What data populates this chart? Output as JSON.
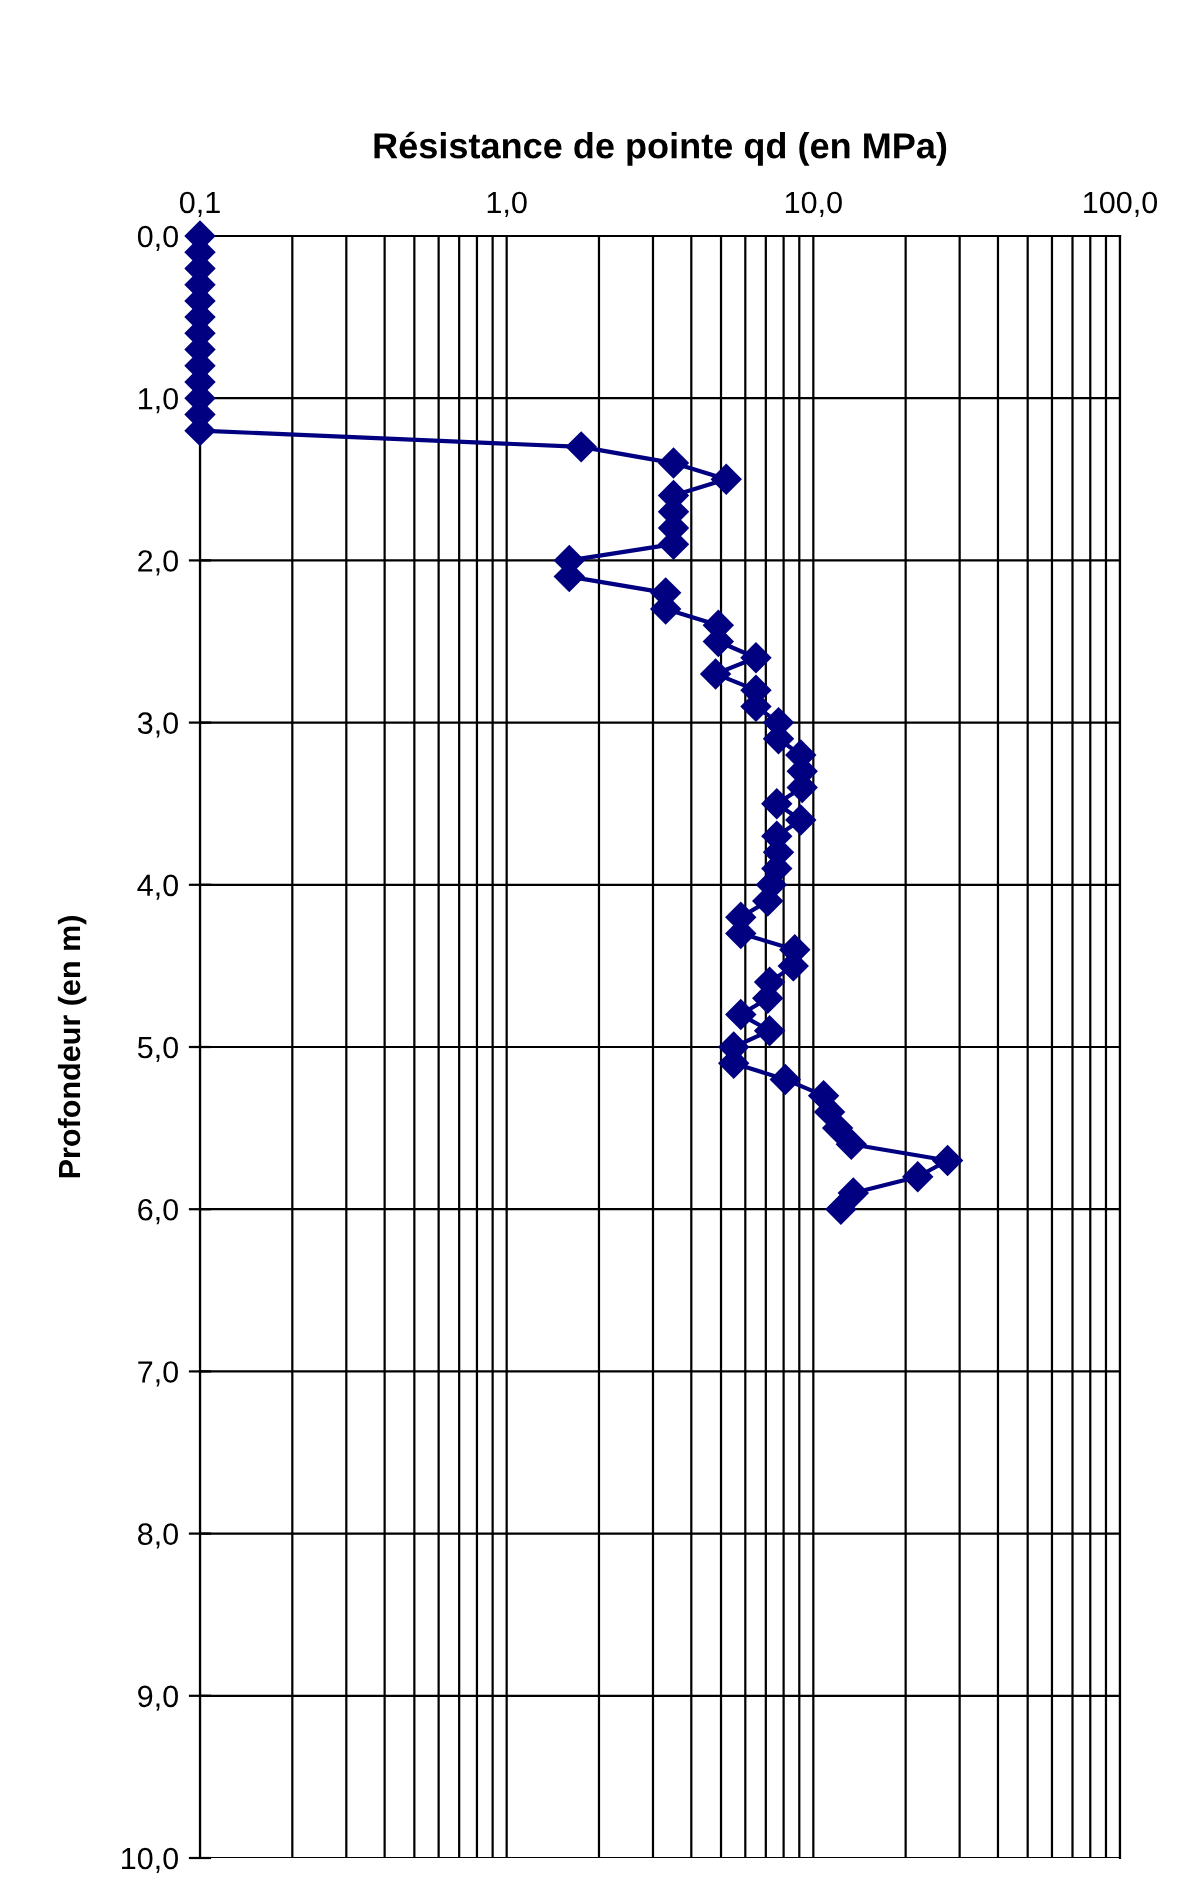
{
  "chart_data": {
    "type": "line",
    "title": "Résistance de pointe qd (en MPa)",
    "ylabel": "Profondeur (en m)",
    "log": "x",
    "grid": true,
    "marker": "diamond",
    "line_style": "solid",
    "legend": false,
    "xlim": [
      0.1,
      100
    ],
    "ylim": [
      10,
      0
    ],
    "xticks": [
      {
        "value": 0.1,
        "label": "0,1"
      },
      {
        "value": 0.2,
        "label": null
      },
      {
        "value": 0.3,
        "label": null
      },
      {
        "value": 0.4,
        "label": null
      },
      {
        "value": 0.5,
        "label": null
      },
      {
        "value": 0.6,
        "label": null
      },
      {
        "value": 0.7,
        "label": null
      },
      {
        "value": 0.8,
        "label": null
      },
      {
        "value": 0.9,
        "label": null
      },
      {
        "value": 1,
        "label": "1,0"
      },
      {
        "value": 2,
        "label": null
      },
      {
        "value": 3,
        "label": null
      },
      {
        "value": 4,
        "label": null
      },
      {
        "value": 5,
        "label": null
      },
      {
        "value": 6,
        "label": null
      },
      {
        "value": 7,
        "label": null
      },
      {
        "value": 8,
        "label": null
      },
      {
        "value": 9,
        "label": null
      },
      {
        "value": 10,
        "label": "10,0"
      },
      {
        "value": 20,
        "label": null
      },
      {
        "value": 30,
        "label": null
      },
      {
        "value": 40,
        "label": null
      },
      {
        "value": 50,
        "label": null
      },
      {
        "value": 60,
        "label": null
      },
      {
        "value": 70,
        "label": null
      },
      {
        "value": 80,
        "label": null
      },
      {
        "value": 90,
        "label": null
      },
      {
        "value": 100,
        "label": "100,0"
      }
    ],
    "yticks": [
      {
        "value": 0,
        "label": "0,0"
      },
      {
        "value": 1,
        "label": "1,0"
      },
      {
        "value": 2,
        "label": "2,0"
      },
      {
        "value": 3,
        "label": "3,0"
      },
      {
        "value": 4,
        "label": "4,0"
      },
      {
        "value": 5,
        "label": "5,0"
      },
      {
        "value": 6,
        "label": "6,0"
      },
      {
        "value": 7,
        "label": "7,0"
      },
      {
        "value": 8,
        "label": "8,0"
      },
      {
        "value": 9,
        "label": "9,0"
      },
      {
        "value": 10,
        "label": "10,0"
      }
    ],
    "series": [
      {
        "color": "#000080",
        "x": [
          0.1,
          0.1,
          0.1,
          0.1,
          0.1,
          0.1,
          0.1,
          0.1,
          0.1,
          0.1,
          0.1,
          0.1,
          0.1,
          1.75,
          3.5,
          5.2,
          3.5,
          3.5,
          3.5,
          3.5,
          1.6,
          1.6,
          3.3,
          3.3,
          4.9,
          4.9,
          6.5,
          4.8,
          6.5,
          6.5,
          7.7,
          7.7,
          9.1,
          9.2,
          9.2,
          7.6,
          9.1,
          7.6,
          7.7,
          7.6,
          7.3,
          7.1,
          5.8,
          5.8,
          8.7,
          8.6,
          7.2,
          7.1,
          5.8,
          7.2,
          5.5,
          5.5,
          8.1,
          10.8,
          11.3,
          12,
          13.3,
          27.4,
          21.9,
          13.5,
          12.3
        ],
        "values": [
          0,
          0.1,
          0.2,
          0.3,
          0.4,
          0.5,
          0.6,
          0.7,
          0.8,
          0.9,
          1,
          1.1,
          1.2,
          1.3,
          1.4,
          1.5,
          1.6,
          1.7,
          1.8,
          1.9,
          2,
          2.1,
          2.2,
          2.3,
          2.4,
          2.5,
          2.6,
          2.7,
          2.8,
          2.9,
          3,
          3.1,
          3.2,
          3.3,
          3.4,
          3.5,
          3.6,
          3.7,
          3.8,
          3.9,
          4,
          4.1,
          4.2,
          4.3,
          4.4,
          4.5,
          4.6,
          4.7,
          4.8,
          4.9,
          5,
          5.1,
          5.2,
          5.3,
          5.4,
          5.5,
          5.6,
          5.7,
          5.8,
          5.9,
          6
        ]
      }
    ]
  }
}
